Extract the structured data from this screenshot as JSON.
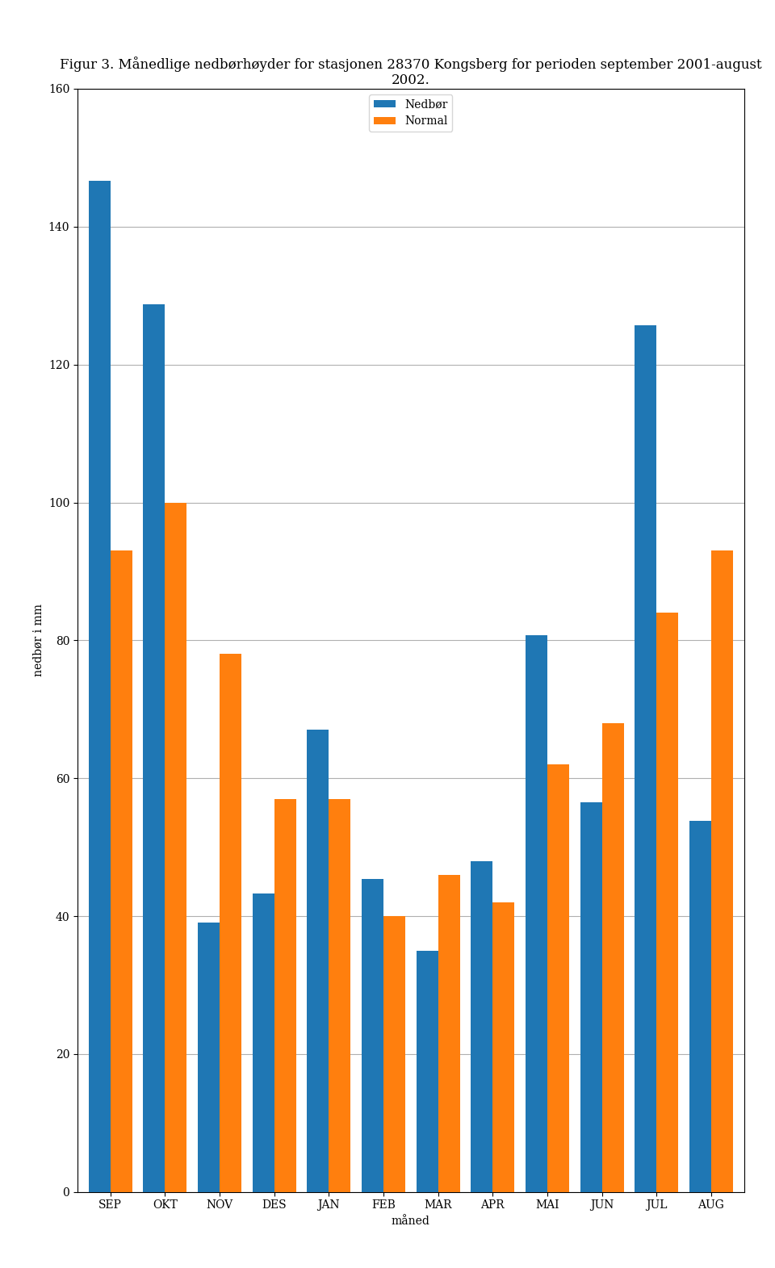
{
  "chart_data": {
    "type": "bar",
    "title": "Figur 3. Månedlige nedbørhøyder for stasjonen 28370 Kongsberg for perioden september 2001-august 2002.",
    "x_label": "måned",
    "y_label": "nedbør i mm",
    "categories": [
      "SEP",
      "OKT",
      "NOV",
      "DES",
      "JAN",
      "FEB",
      "MAR",
      "APR",
      "MAI",
      "JUN",
      "JUL",
      "AUG"
    ],
    "series": [
      {
        "name": "Nedbør",
        "values": [
          146.6,
          128.7,
          39.1,
          43.3,
          67.0,
          45.4,
          35.0,
          48.0,
          80.8,
          56.5,
          125.7,
          53.8
        ]
      },
      {
        "name": "Normal",
        "values": [
          93.0,
          100.0,
          78.0,
          57.0,
          57.0,
          40.0,
          46.0,
          42.0,
          62.0,
          68.0,
          84.0,
          93.0
        ]
      }
    ],
    "ylim": [
      0,
      160
    ],
    "yticks": [
      0,
      20,
      40,
      60,
      80,
      100,
      120,
      140,
      160
    ],
    "grid": true,
    "legend": "upper center"
  }
}
